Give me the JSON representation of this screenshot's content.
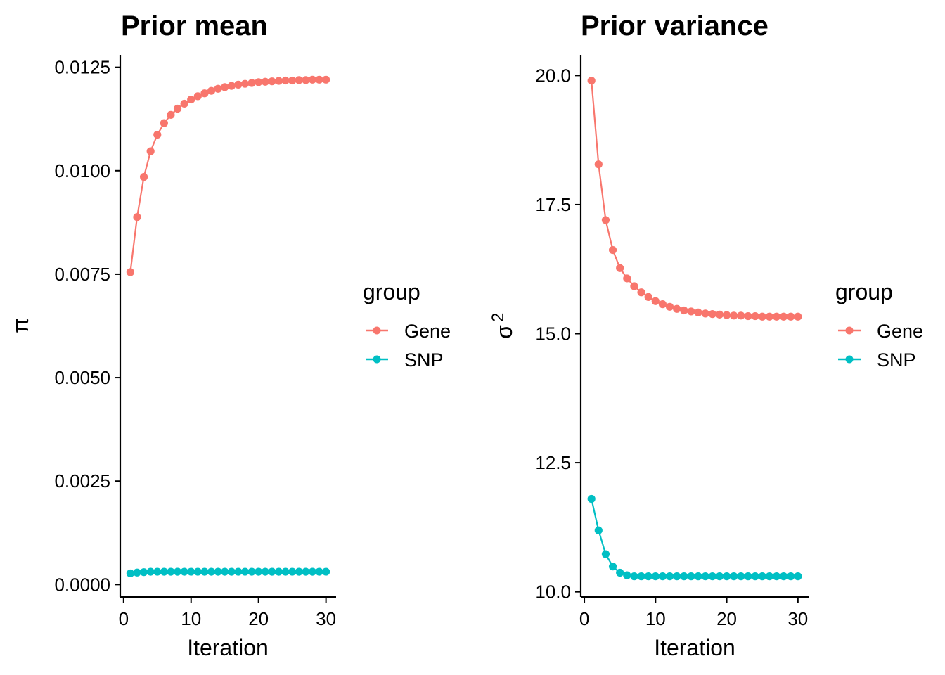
{
  "legend": {
    "title": "group",
    "entries": [
      {
        "label": "Gene",
        "color": "#F8766D"
      },
      {
        "label": "SNP",
        "color": "#00BFC4"
      }
    ]
  },
  "chart_data": [
    {
      "type": "line",
      "title": "Prior mean",
      "xlabel": "Iteration",
      "ylabel": "π",
      "xlim": [
        -0.5,
        31.5
      ],
      "ylim": [
        -0.0003,
        0.0128
      ],
      "xticks": [
        0,
        10,
        20,
        30
      ],
      "xtick_labels": [
        "0",
        "10",
        "20",
        "30"
      ],
      "yticks": [
        0,
        0.0025,
        0.005,
        0.0075,
        0.01,
        0.0125
      ],
      "ytick_labels": [
        "0.0000",
        "0.0025",
        "0.0050",
        "0.0075",
        "0.0100",
        "0.0125"
      ],
      "x": [
        1,
        2,
        3,
        4,
        5,
        6,
        7,
        8,
        9,
        10,
        11,
        12,
        13,
        14,
        15,
        16,
        17,
        18,
        19,
        20,
        21,
        22,
        23,
        24,
        25,
        26,
        27,
        28,
        29,
        30
      ],
      "series": [
        {
          "name": "Gene",
          "color": "#F8766D",
          "values": [
            0.00755,
            0.00888,
            0.00985,
            0.01047,
            0.01087,
            0.01115,
            0.01135,
            0.0115,
            0.01162,
            0.01172,
            0.0118,
            0.01187,
            0.01193,
            0.01198,
            0.01202,
            0.01205,
            0.01208,
            0.0121,
            0.01212,
            0.01214,
            0.01215,
            0.01216,
            0.01217,
            0.01218,
            0.01218,
            0.01219,
            0.01219,
            0.0122,
            0.0122,
            0.0122
          ]
        },
        {
          "name": "SNP",
          "color": "#00BFC4",
          "values": [
            0.00027,
            0.00029,
            0.0003,
            0.00031,
            0.00031,
            0.00031,
            0.00031,
            0.00031,
            0.00031,
            0.00031,
            0.00031,
            0.00031,
            0.00031,
            0.00031,
            0.00031,
            0.00031,
            0.00031,
            0.00031,
            0.00031,
            0.00031,
            0.00031,
            0.00031,
            0.00031,
            0.00031,
            0.00031,
            0.00031,
            0.00031,
            0.00031,
            0.00031,
            0.00031
          ]
        }
      ]
    },
    {
      "type": "line",
      "title": "Prior variance",
      "xlabel": "Iteration",
      "ylabel_base": "σ",
      "ylabel_sup": "2",
      "xlim": [
        -0.5,
        31.5
      ],
      "ylim": [
        9.9,
        20.4
      ],
      "xticks": [
        0,
        10,
        20,
        30
      ],
      "xtick_labels": [
        "0",
        "10",
        "20",
        "30"
      ],
      "yticks": [
        10,
        12.5,
        15,
        17.5,
        20
      ],
      "ytick_labels": [
        "10.0",
        "12.5",
        "15.0",
        "17.5",
        "20.0"
      ],
      "x": [
        1,
        2,
        3,
        4,
        5,
        6,
        7,
        8,
        9,
        10,
        11,
        12,
        13,
        14,
        15,
        16,
        17,
        18,
        19,
        20,
        21,
        22,
        23,
        24,
        25,
        26,
        27,
        28,
        29,
        30
      ],
      "series": [
        {
          "name": "Gene",
          "color": "#F8766D",
          "values": [
            19.9,
            18.28,
            17.2,
            16.62,
            16.27,
            16.07,
            15.92,
            15.8,
            15.71,
            15.63,
            15.57,
            15.52,
            15.48,
            15.45,
            15.43,
            15.41,
            15.39,
            15.38,
            15.37,
            15.36,
            15.35,
            15.35,
            15.34,
            15.34,
            15.33,
            15.33,
            15.33,
            15.33,
            15.33,
            15.33
          ]
        },
        {
          "name": "SNP",
          "color": "#00BFC4",
          "values": [
            11.8,
            11.19,
            10.73,
            10.49,
            10.37,
            10.32,
            10.3,
            10.3,
            10.3,
            10.3,
            10.3,
            10.3,
            10.3,
            10.3,
            10.3,
            10.3,
            10.3,
            10.3,
            10.3,
            10.3,
            10.3,
            10.3,
            10.3,
            10.3,
            10.3,
            10.3,
            10.3,
            10.3,
            10.3,
            10.3
          ]
        }
      ]
    }
  ]
}
